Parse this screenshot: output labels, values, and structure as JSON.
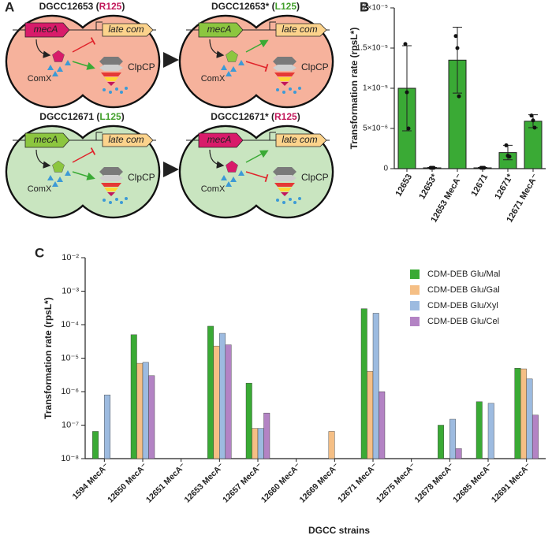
{
  "panel_labels": [
    "A",
    "B",
    "C"
  ],
  "diagram": {
    "cells": [
      {
        "title_parts": [
          "DGCC12653 (",
          "R125",
          ")"
        ],
        "residue_color": "#c2185b",
        "cell_color": "#f6b29c",
        "mecA_color": "#d81b6a",
        "comx_color": "#d81b6a",
        "upper": "inhibit",
        "lower": "activate"
      },
      {
        "title_parts": [
          "DGCC12653* (",
          "L125",
          ")"
        ],
        "residue_color": "#43a02c",
        "cell_color": "#f6b29c",
        "mecA_color": "#8cc63f",
        "comx_color": "#8cc63f",
        "upper": "activate",
        "lower": "inhibit"
      },
      {
        "title_parts": [
          "DGCC12671 (",
          "L125",
          ")"
        ],
        "residue_color": "#43a02c",
        "cell_color": "#c9e5c0",
        "mecA_color": "#8cc63f",
        "comx_color": "#8cc63f",
        "upper": "inhibit",
        "lower": "activate"
      },
      {
        "title_parts": [
          "DGCC12671* (",
          "R125",
          ")"
        ],
        "residue_color": "#c2185b",
        "cell_color": "#c9e5c0",
        "mecA_color": "#d81b6a",
        "comx_color": "#d81b6a",
        "upper": "activate",
        "lower": "inhibit"
      }
    ],
    "gene1": "mecA",
    "gene2": "late com",
    "protein": "ComX",
    "protease": "ClpCP"
  },
  "chart_data": [
    {
      "type": "bar",
      "categories": [
        "12653",
        "12653*",
        "12653 MecA⁻",
        "12671",
        "12671*",
        "12671 MecA⁻"
      ],
      "values": [
        1e-05,
        1e-07,
        1.35e-05,
        1e-07,
        2e-06,
        5.9e-06
      ],
      "errors": [
        5.3e-06,
        5e-08,
        4.1e-06,
        5e-08,
        9e-07,
        8e-07
      ],
      "points": [
        [
          1.55e-05,
          9.5e-06,
          5e-06
        ],
        [
          1e-07,
          1e-07,
          1e-07
        ],
        [
          1.65e-05,
          1.5e-05,
          9e-06
        ],
        [
          1e-07,
          1e-07,
          1e-07
        ],
        [
          2.9e-06,
          1.6e-06,
          1.5e-06
        ],
        [
          6.6e-06,
          6e-06,
          5.1e-06
        ]
      ],
      "color": "#3aaa35",
      "ylabel": "Transformation rate (rpsL*)",
      "ylim": [
        0,
        2e-05
      ],
      "yticks": [
        0,
        {
          "value": 5e-06,
          "label": "5×10⁻⁶"
        },
        {
          "value": 1e-05,
          "label": "1×10⁻⁵"
        },
        {
          "value": 1.5e-05,
          "label": "1.5×10⁻⁵"
        },
        {
          "value": 2e-05,
          "label": "2×10⁻⁵"
        }
      ]
    },
    {
      "type": "bar",
      "log_scale": true,
      "categories": [
        "1594 MecA⁻",
        "12650 MecA⁻",
        "12651 MecA⁻",
        "12653 MecA⁻",
        "12657 MecA⁻",
        "12660 MecA⁻",
        "12669 MecA⁻",
        "12671 MecA⁻",
        "12675 MecA⁻",
        "12678 MecA⁻",
        "12685 MecA⁻",
        "12691 MecA⁻"
      ],
      "series": [
        {
          "name": "CDM-DEB Glu/Mal",
          "color": "#3aaa35",
          "values": [
            6.5e-08,
            5e-05,
            null,
            9e-05,
            1.8e-06,
            null,
            null,
            0.0003,
            null,
            1e-07,
            5e-07,
            5e-06
          ]
        },
        {
          "name": "CDM-DEB Glu/Gal",
          "color": "#f5bf85",
          "values": [
            null,
            7e-06,
            null,
            2.3e-05,
            8e-08,
            null,
            6.5e-08,
            4e-06,
            null,
            null,
            null,
            4.8e-06
          ]
        },
        {
          "name": "CDM-DEB Glu/Xyl",
          "color": "#9dbbe0",
          "values": [
            8e-07,
            7.5e-06,
            null,
            5.5e-05,
            8e-08,
            null,
            null,
            0.00022,
            null,
            1.5e-07,
            4.5e-07,
            2.4e-06
          ]
        },
        {
          "name": "CDM-DEB Glu/Cel",
          "color": "#b383c4",
          "values": [
            null,
            3e-06,
            null,
            2.5e-05,
            2.3e-07,
            null,
            null,
            1e-06,
            null,
            2e-08,
            null,
            2e-07
          ]
        }
      ],
      "xlabel": "DGCC strains",
      "ylabel": "Transformation rate (rpsL*)",
      "ylim": [
        1e-08,
        0.01
      ],
      "yticks": [
        {
          "value": 1e-08,
          "label": "10⁻⁸"
        },
        {
          "value": 1e-07,
          "label": "10⁻⁷"
        },
        {
          "value": 1e-06,
          "label": "10⁻⁶"
        },
        {
          "value": 1e-05,
          "label": "10⁻⁵"
        },
        {
          "value": 0.0001,
          "label": "10⁻⁴"
        },
        {
          "value": 0.001,
          "label": "10⁻³"
        },
        {
          "value": 0.01,
          "label": "10⁻²"
        }
      ],
      "legend": "upper right"
    }
  ]
}
